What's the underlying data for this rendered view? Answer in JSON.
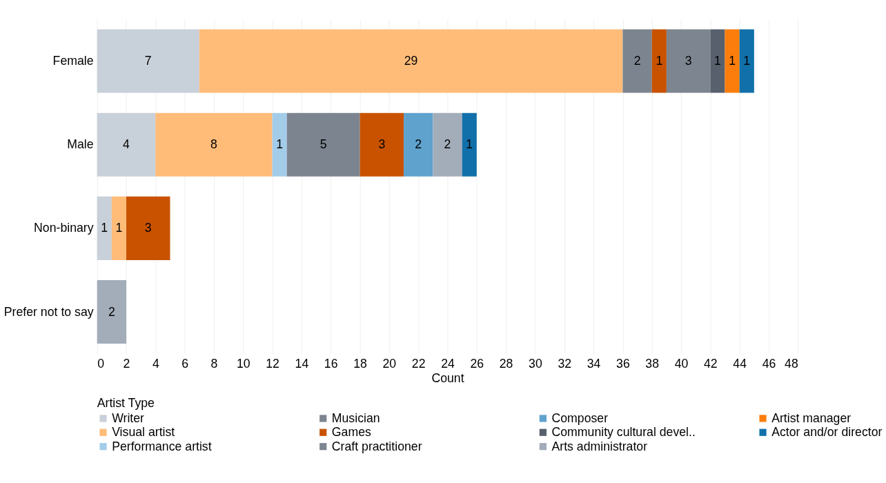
{
  "chart_data": {
    "type": "bar",
    "orientation": "horizontal",
    "stacked": true,
    "xlabel": "Count",
    "legend_title": "Artist Type",
    "legend": "bottom",
    "grid": "x",
    "data_labels": true,
    "categories": [
      "Female",
      "Male",
      "Non-binary",
      "Prefer not to say"
    ],
    "xlim": [
      0,
      48
    ],
    "xticks": [
      0,
      2,
      4,
      6,
      8,
      10,
      12,
      14,
      16,
      18,
      20,
      22,
      24,
      26,
      28,
      30,
      32,
      34,
      36,
      38,
      40,
      42,
      44,
      46,
      48
    ],
    "series": [
      {
        "name": "Writer",
        "color": "#c8d0d9",
        "values": [
          7,
          4,
          1,
          null
        ]
      },
      {
        "name": "Visual artist",
        "color": "#ffbc79",
        "values": [
          29,
          8,
          1,
          null
        ]
      },
      {
        "name": "Performance artist",
        "color": "#a3cce9",
        "values": [
          null,
          1,
          null,
          null
        ]
      },
      {
        "name": "Musician",
        "color": "#7b848f",
        "values": [
          2,
          5,
          null,
          null
        ]
      },
      {
        "name": "Games",
        "color": "#c85200",
        "values": [
          1,
          3,
          3,
          null
        ]
      },
      {
        "name": "Craft practitioner",
        "color": "#7c8590",
        "values": [
          3,
          null,
          null,
          null
        ]
      },
      {
        "name": "Composer",
        "color": "#5fa2ce",
        "values": [
          null,
          2,
          null,
          null
        ]
      },
      {
        "name": "Community cultural devel..",
        "color": "#57606c",
        "values": [
          1,
          null,
          null,
          null
        ]
      },
      {
        "name": "Arts administrator",
        "color": "#a3acb9",
        "values": [
          null,
          2,
          null,
          2
        ]
      },
      {
        "name": "Artist manager",
        "color": "#fc7d0b",
        "values": [
          1,
          null,
          null,
          null
        ]
      },
      {
        "name": "Actor and/or director",
        "color": "#1170aa",
        "values": [
          1,
          1,
          null,
          null
        ]
      }
    ]
  }
}
